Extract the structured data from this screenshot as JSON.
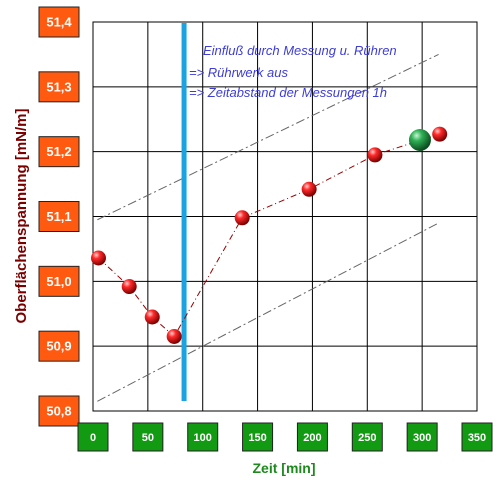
{
  "chart_data": {
    "type": "scatter",
    "xlabel": "Zeit [min]",
    "ylabel": "Oberflächenspannung [mN/m]",
    "xlim": [
      0,
      350
    ],
    "ylim": [
      50.8,
      51.4
    ],
    "x_ticks": [
      "0",
      "50",
      "100",
      "150",
      "200",
      "250",
      "300",
      "350"
    ],
    "y_ticks": [
      "51,4",
      "51,3",
      "51,2",
      "51,1",
      "51,0",
      "50,9",
      "50,8"
    ],
    "grid": true,
    "series": [
      {
        "points": [
          {
            "x": 5,
            "y": 51.036
          },
          {
            "x": 33,
            "y": 50.992
          },
          {
            "x": 54,
            "y": 50.945
          },
          {
            "x": 74,
            "y": 50.915
          },
          {
            "x": 136,
            "y": 51.098
          },
          {
            "x": 197,
            "y": 51.142
          },
          {
            "x": 257,
            "y": 51.195
          },
          {
            "x": 316,
            "y": 51.227
          }
        ],
        "color": "#cc0000"
      }
    ],
    "highlight_point": {
      "x": 298,
      "y": 51.218,
      "color": "#1e8a3c"
    },
    "vertical_marker": {
      "x": 83,
      "color": "#1aa3e0"
    },
    "bound_lines": [
      {
        "x1": 4,
        "y1": 51.095,
        "x2": 315,
        "y2": 51.35
      },
      {
        "x1": 4,
        "y1": 50.815,
        "x2": 315,
        "y2": 51.09
      }
    ],
    "annotations": [
      "Einfluß durch Messung u. Rühren",
      "=> Rührwerk aus",
      "=> Zeitabstand der Messungen 1h"
    ]
  }
}
